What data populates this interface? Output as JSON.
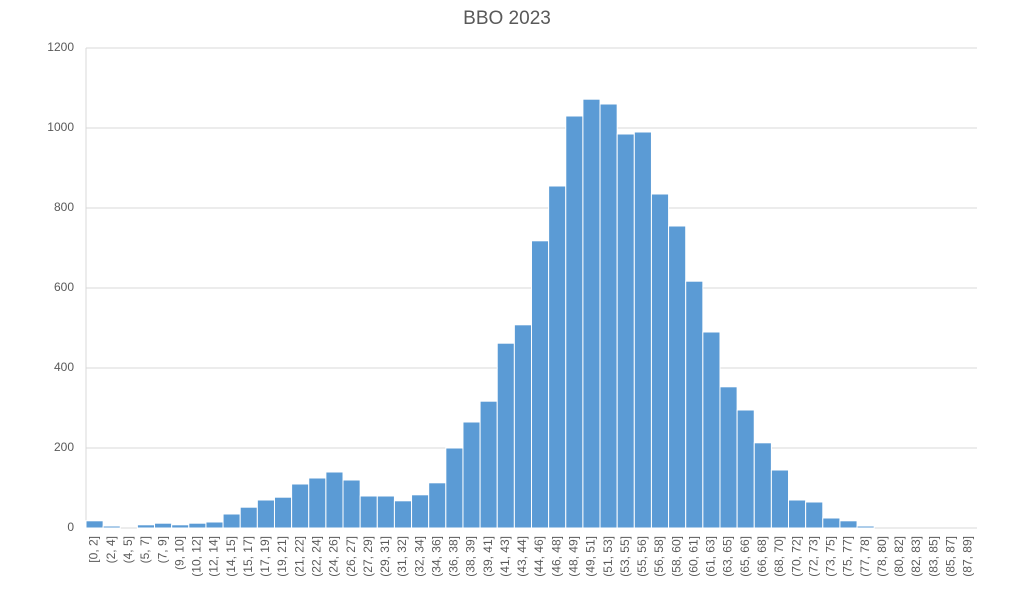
{
  "chart_data": {
    "type": "bar",
    "title": "BBO 2023",
    "categories": [
      "[0, 2]",
      "(2, 4]",
      "(4, 5]",
      "(5, 7]",
      "(7, 9]",
      "(9, 10]",
      "(10, 12]",
      "(12, 14]",
      "(14, 15]",
      "(15, 17]",
      "(17, 19]",
      "(19, 21]",
      "(21, 22]",
      "(22, 24]",
      "(24, 26]",
      "(26, 27]",
      "(27, 29]",
      "(29, 31]",
      "(31, 32]",
      "(32, 34]",
      "(34, 36]",
      "(36, 38]",
      "(38, 39]",
      "(39, 41]",
      "(41, 43]",
      "(43, 44]",
      "(44, 46]",
      "(46, 48]",
      "(48, 49]",
      "(49, 51]",
      "(51, 53]",
      "(53, 55]",
      "(55, 56]",
      "(56, 58]",
      "(58, 60]",
      "(60, 61]",
      "(61, 63]",
      "(63, 65]",
      "(65, 66]",
      "(66, 68]",
      "(68, 70]",
      "(70, 72]",
      "(72, 73]",
      "(73, 75]",
      "(75, 77]",
      "(77, 78]",
      "(78, 80]",
      "(80, 82]",
      "(82, 83]",
      "(83, 85]",
      "(85, 87]",
      "(87, 89]"
    ],
    "values": [
      18,
      5,
      0,
      8,
      12,
      8,
      12,
      15,
      35,
      52,
      70,
      77,
      110,
      125,
      140,
      120,
      80,
      80,
      68,
      83,
      113,
      200,
      265,
      317,
      462,
      508,
      718,
      855,
      1030,
      1072,
      1060,
      985,
      990,
      835,
      755,
      617,
      490,
      353,
      295,
      213,
      145,
      70,
      65,
      25,
      18,
      5,
      0,
      0,
      0,
      0,
      0,
      0
    ],
    "color": "#5b9bd5",
    "ylim": [
      0,
      1200
    ],
    "yticks": [
      0,
      200,
      400,
      600,
      800,
      1000,
      1200
    ],
    "grid": true
  }
}
